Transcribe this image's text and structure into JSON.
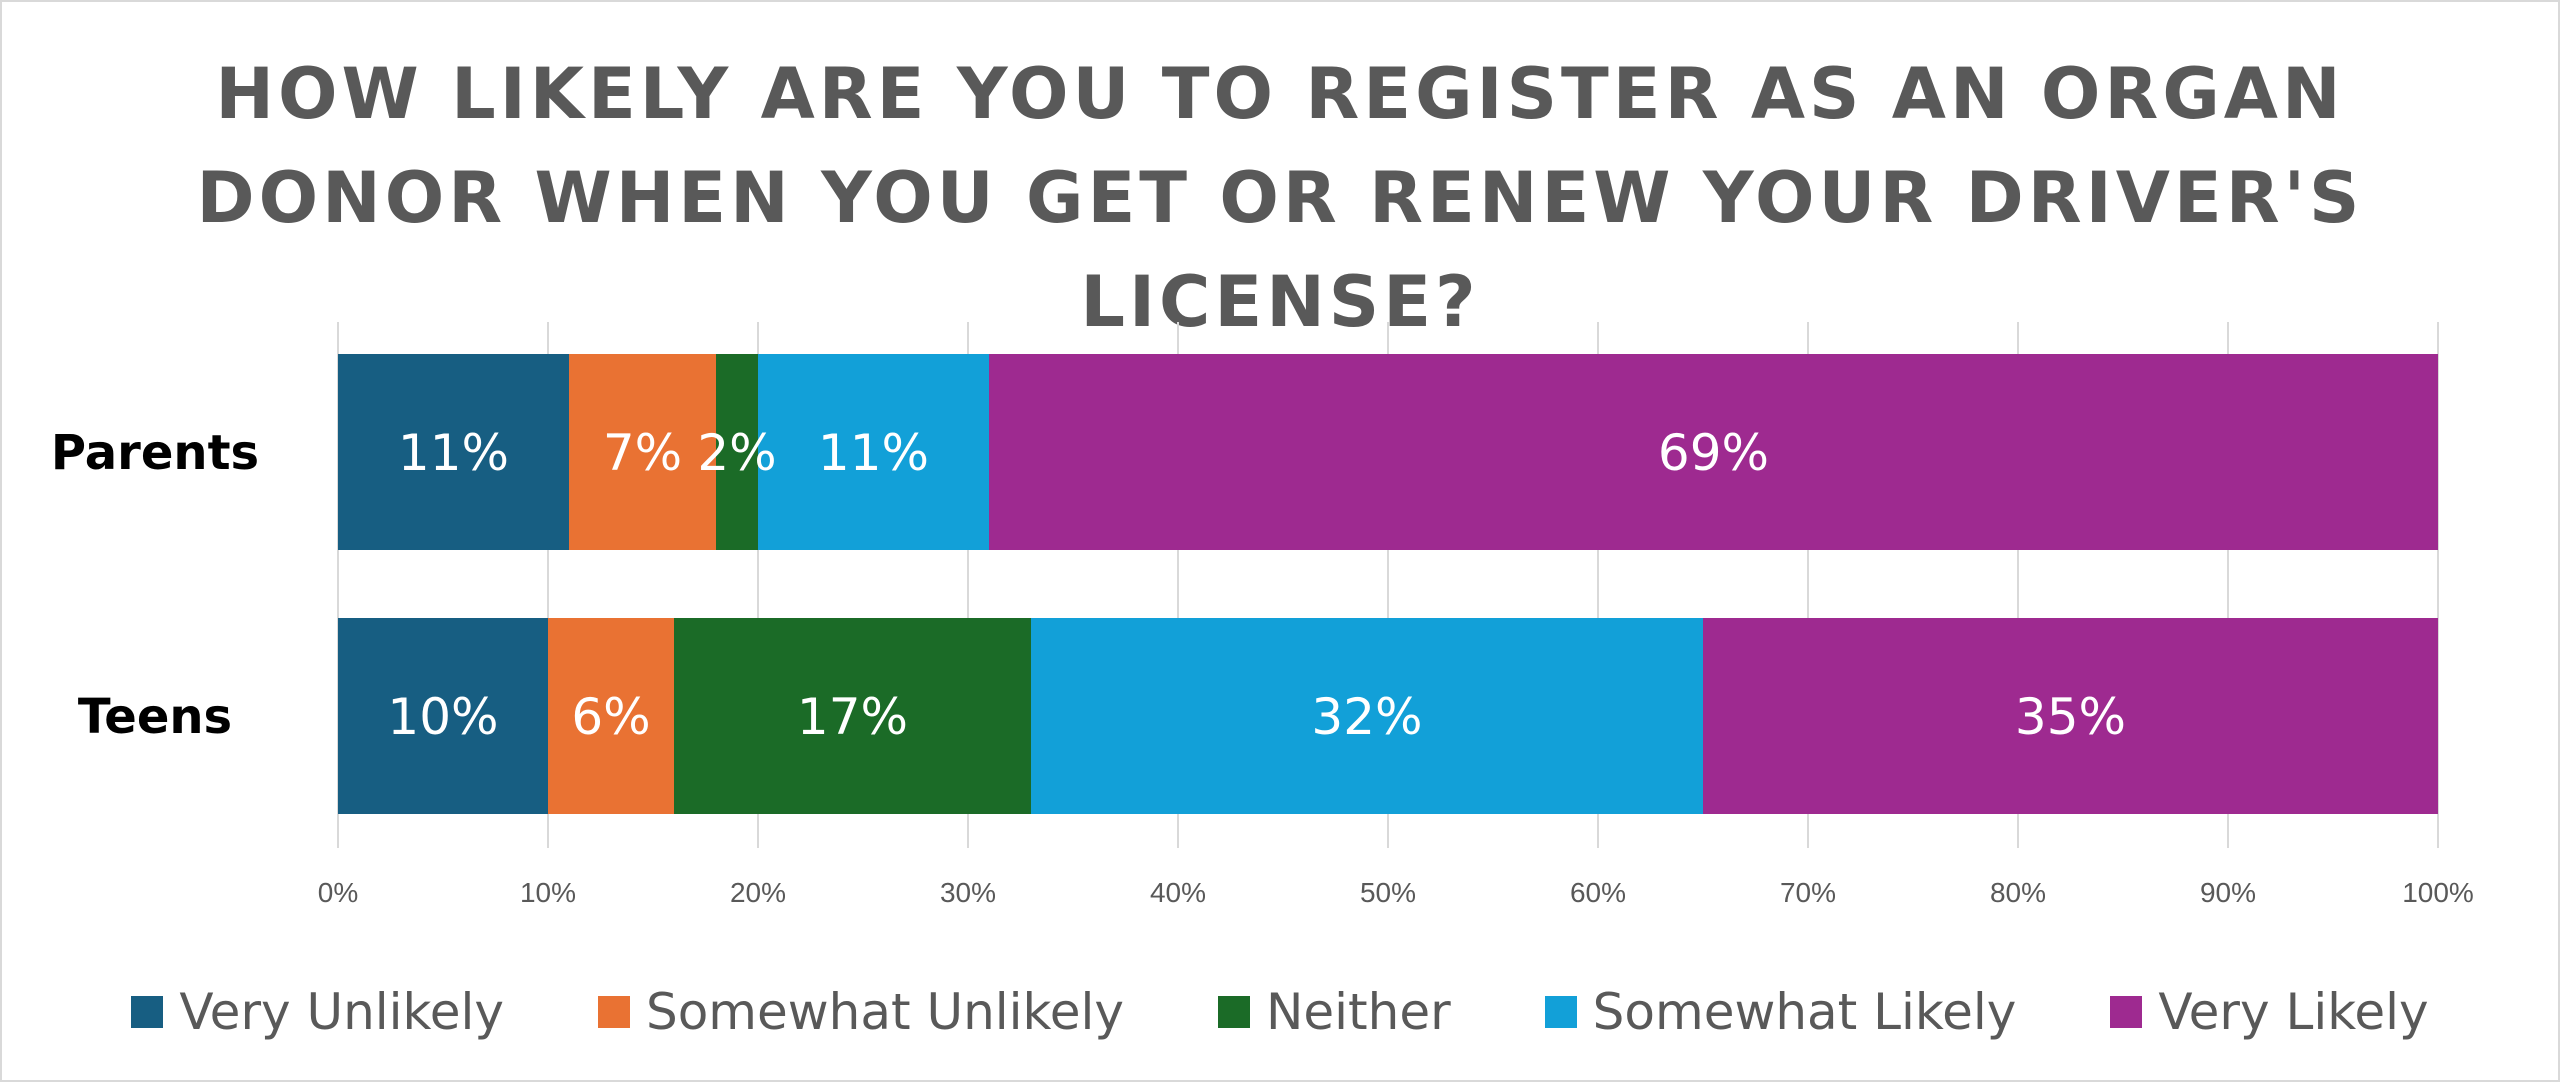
{
  "chart_data": {
    "type": "bar",
    "orientation": "horizontal",
    "stacked": true,
    "title": "HOW LIKELY ARE YOU TO REGISTER AS AN ORGAN DONOR WHEN YOU GET OR RENEW YOUR DRIVER'S LICENSE?",
    "categories": [
      "Parents",
      "Teens"
    ],
    "series": [
      {
        "name": "Very Unlikely",
        "color": "#175e82",
        "values": [
          11,
          10
        ],
        "labels": [
          "11%",
          "10%"
        ]
      },
      {
        "name": "Somewhat Unlikely",
        "color": "#e97233",
        "values": [
          7,
          6
        ],
        "labels": [
          "7%",
          "6%"
        ]
      },
      {
        "name": "Neither",
        "color": "#1b6b27",
        "values": [
          2,
          17
        ],
        "labels": [
          "2%",
          "17%"
        ]
      },
      {
        "name": "Somewhat Likely",
        "color": "#12a0d8",
        "values": [
          11,
          32
        ],
        "labels": [
          "11%",
          "32%"
        ]
      },
      {
        "name": "Very Likely",
        "color": "#9e2a90",
        "values": [
          69,
          35
        ],
        "labels": [
          "69%",
          "35%"
        ]
      }
    ],
    "xlim": [
      0,
      100
    ],
    "x_ticks": [
      "0%",
      "10%",
      "20%",
      "30%",
      "40%",
      "50%",
      "60%",
      "70%",
      "80%",
      "90%",
      "100%"
    ],
    "grid": true,
    "legend_position": "bottom"
  }
}
